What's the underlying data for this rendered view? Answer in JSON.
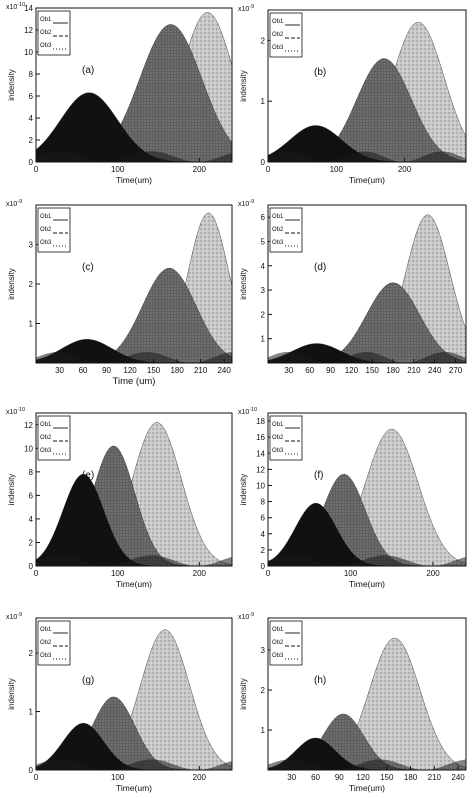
{
  "chart_data": [
    {
      "type": "area",
      "panel_label": "(a)",
      "exponent": "x10",
      "exponent_power": "-10",
      "ylabel": "indensity",
      "xlabel": "Time(um)",
      "xlim": [
        0,
        240
      ],
      "ylim": [
        0,
        14
      ],
      "xticks": [
        0,
        100,
        200
      ],
      "yticks": [
        0,
        2,
        4,
        6,
        8,
        10,
        12,
        14
      ],
      "legend": [
        "Ob1",
        "Ob2",
        "Ob3"
      ],
      "legend_position": "top-left",
      "series": [
        {
          "peak_x": 65,
          "peak_y": 6.3,
          "width": 35,
          "color": "#111111"
        },
        {
          "peak_x": 165,
          "peak_y": 12.5,
          "width": 38,
          "color": "#555555"
        },
        {
          "peak_x": 210,
          "peak_y": 13.6,
          "width": 32,
          "color": "#b5b5b5"
        }
      ]
    },
    {
      "type": "area",
      "panel_label": "(b)",
      "exponent": "x10",
      "exponent_power": "-9",
      "ylabel": "indensity",
      "xlabel": "Time(um)",
      "xlim": [
        0,
        290
      ],
      "ylim": [
        0,
        2.5
      ],
      "xticks": [
        0,
        100,
        200
      ],
      "yticks": [
        0,
        1,
        2
      ],
      "legend": [
        "Ob1",
        "Ob2",
        "Ob3"
      ],
      "legend_position": "top-left",
      "series": [
        {
          "peak_x": 70,
          "peak_y": 0.6,
          "width": 38,
          "color": "#111111"
        },
        {
          "peak_x": 170,
          "peak_y": 1.7,
          "width": 40,
          "color": "#555555"
        },
        {
          "peak_x": 220,
          "peak_y": 2.3,
          "width": 38,
          "color": "#b5b5b5"
        }
      ]
    },
    {
      "type": "area",
      "panel_label": "(c)",
      "exponent": "x10",
      "exponent_power": "-9",
      "ylabel": "indensity",
      "xlabel": "Time (um)",
      "xlim": [
        0,
        250
      ],
      "ylim": [
        0,
        4
      ],
      "xticks": [
        30,
        60,
        90,
        120,
        150,
        180,
        210,
        240
      ],
      "yticks": [
        1,
        2,
        3
      ],
      "legend": [
        "Ob1",
        "Ob2",
        "Ob3"
      ],
      "legend_position": "top-left",
      "series": [
        {
          "peak_x": 65,
          "peak_y": 0.6,
          "width": 32,
          "color": "#111111"
        },
        {
          "peak_x": 170,
          "peak_y": 2.4,
          "width": 34,
          "color": "#555555"
        },
        {
          "peak_x": 220,
          "peak_y": 3.8,
          "width": 26,
          "color": "#b5b5b5"
        }
      ]
    },
    {
      "type": "area",
      "panel_label": "(d)",
      "exponent": "x10",
      "exponent_power": "-9",
      "ylabel": "indensity",
      "xlabel": "",
      "xlim": [
        0,
        285
      ],
      "ylim": [
        0,
        6.5
      ],
      "xticks": [
        30,
        60,
        90,
        120,
        150,
        180,
        210,
        240,
        270
      ],
      "yticks": [
        1,
        2,
        3,
        4,
        5,
        6
      ],
      "legend": [
        "Ob1",
        "Ob2",
        "Ob3"
      ],
      "legend_position": "top-left",
      "series": [
        {
          "peak_x": 70,
          "peak_y": 0.8,
          "width": 35,
          "color": "#111111"
        },
        {
          "peak_x": 180,
          "peak_y": 3.3,
          "width": 38,
          "color": "#555555"
        },
        {
          "peak_x": 230,
          "peak_y": 6.1,
          "width": 32,
          "color": "#b5b5b5"
        }
      ]
    },
    {
      "type": "area",
      "panel_label": "(e)",
      "exponent": "x10",
      "exponent_power": "-10",
      "ylabel": "indensity",
      "xlabel": "Time(um)",
      "xlim": [
        0,
        240
      ],
      "ylim": [
        0,
        13
      ],
      "xticks": [
        0,
        100,
        200
      ],
      "yticks": [
        0,
        2,
        4,
        6,
        8,
        10,
        12
      ],
      "legend": [
        "Ob1",
        "Ob2",
        "Ob3"
      ],
      "legend_position": "top-left",
      "series": [
        {
          "peak_x": 58,
          "peak_y": 7.8,
          "width": 25,
          "color": "#111111"
        },
        {
          "peak_x": 95,
          "peak_y": 10.2,
          "width": 26,
          "color": "#555555"
        },
        {
          "peak_x": 148,
          "peak_y": 12.2,
          "width": 30,
          "color": "#b5b5b5"
        }
      ]
    },
    {
      "type": "area",
      "panel_label": "(f)",
      "exponent": "x10",
      "exponent_power": "-10",
      "ylabel": "indensity",
      "xlabel": "Time(um)",
      "xlim": [
        0,
        240
      ],
      "ylim": [
        0,
        19
      ],
      "xticks": [
        0,
        100,
        200
      ],
      "yticks": [
        0,
        2,
        4,
        6,
        8,
        10,
        12,
        14,
        16,
        18
      ],
      "legend": [
        "Ob1",
        "Ob2",
        "Ob3"
      ],
      "legend_position": "top-left",
      "series": [
        {
          "peak_x": 58,
          "peak_y": 7.8,
          "width": 25,
          "color": "#111111"
        },
        {
          "peak_x": 92,
          "peak_y": 11.4,
          "width": 26,
          "color": "#555555"
        },
        {
          "peak_x": 150,
          "peak_y": 17.0,
          "width": 32,
          "color": "#b5b5b5"
        }
      ]
    },
    {
      "type": "area",
      "panel_label": "(g)",
      "exponent": "x10",
      "exponent_power": "-9",
      "ylabel": "indensity",
      "xlabel": "Time(um)",
      "xlim": [
        0,
        240
      ],
      "ylim": [
        0,
        2.6
      ],
      "xticks": [
        0,
        100,
        200
      ],
      "yticks": [
        0,
        1,
        2
      ],
      "legend": [
        "Ob1",
        "Ob2",
        "Ob3"
      ],
      "legend_position": "top-left",
      "series": [
        {
          "peak_x": 58,
          "peak_y": 0.8,
          "width": 25,
          "color": "#111111"
        },
        {
          "peak_x": 95,
          "peak_y": 1.25,
          "width": 26,
          "color": "#555555"
        },
        {
          "peak_x": 158,
          "peak_y": 2.4,
          "width": 30,
          "color": "#b5b5b5"
        }
      ]
    },
    {
      "type": "area",
      "panel_label": "(h)",
      "exponent": "x10",
      "exponent_power": "-9",
      "ylabel": "indensity",
      "xlabel": "Time(um)",
      "xlim": [
        0,
        250
      ],
      "ylim": [
        0,
        3.8
      ],
      "xticks": [
        30,
        60,
        90,
        120,
        150,
        180,
        210,
        240
      ],
      "yticks": [
        1,
        2,
        3
      ],
      "legend": [
        "Ob1",
        "Ob2",
        "Ob3"
      ],
      "legend_position": "top-left",
      "series": [
        {
          "peak_x": 60,
          "peak_y": 0.8,
          "width": 25,
          "color": "#111111"
        },
        {
          "peak_x": 95,
          "peak_y": 1.4,
          "width": 26,
          "color": "#555555"
        },
        {
          "peak_x": 160,
          "peak_y": 3.3,
          "width": 32,
          "color": "#b5b5b5"
        }
      ]
    }
  ]
}
